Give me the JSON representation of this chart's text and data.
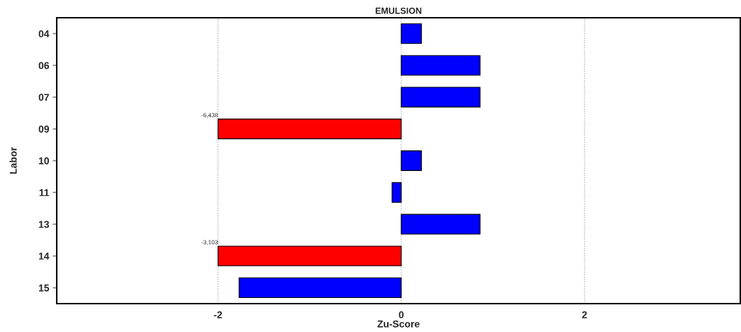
{
  "chart_data": {
    "type": "bar",
    "orientation": "horizontal",
    "title": "EMULSION",
    "xlabel": "Zu-Score",
    "ylabel": "Labor",
    "categories": [
      "04",
      "06",
      "07",
      "09",
      "10",
      "11",
      "13",
      "14",
      "15"
    ],
    "values": [
      0.22,
      0.86,
      0.86,
      -2,
      0.22,
      -0.1,
      0.86,
      -2,
      -1.77
    ],
    "colors": [
      "#0000ff",
      "#0000ff",
      "#0000ff",
      "#ff0000",
      "#0000ff",
      "#0000ff",
      "#0000ff",
      "#ff0000",
      "#0000ff"
    ],
    "annotations": [
      {
        "text": "-6,438",
        "x": -2,
        "y": "09"
      },
      {
        "text": "-3,103",
        "x": -2,
        "y": "14"
      }
    ],
    "xlim": [
      -3.76,
      3.7
    ],
    "xticks": [
      -2,
      0,
      2
    ],
    "grid": "x"
  }
}
